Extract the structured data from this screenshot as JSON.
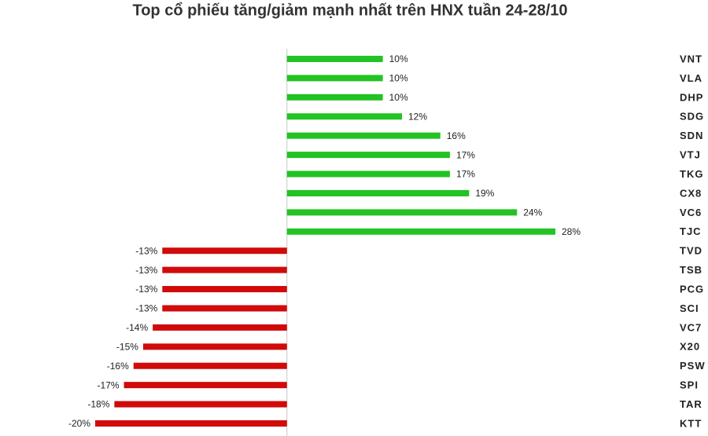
{
  "chart_data": {
    "type": "bar",
    "orientation": "horizontal",
    "title": "Top cổ phiếu tăng/giảm mạnh nhất trên HNX tuần 24-28/10",
    "categories": [
      "VNT",
      "VLA",
      "DHP",
      "SDG",
      "SDN",
      "VTJ",
      "TKG",
      "CX8",
      "VC6",
      "TJC",
      "TVD",
      "TSB",
      "PCG",
      "SCI",
      "VC7",
      "X20",
      "PSW",
      "SPI",
      "TAR",
      "KTT"
    ],
    "values": [
      10,
      10,
      10,
      12,
      16,
      17,
      17,
      19,
      24,
      28,
      -13,
      -13,
      -13,
      -13,
      -14,
      -15,
      -16,
      -17,
      -18,
      -20
    ],
    "value_labels": [
      "10%",
      "10%",
      "10%",
      "12%",
      "16%",
      "17%",
      "17%",
      "19%",
      "24%",
      "28%",
      "-13%",
      "-13%",
      "-13%",
      "-13%",
      "-14%",
      "-15%",
      "-16%",
      "-17%",
      "-18%",
      "-20%"
    ],
    "positive_color": "#22c322",
    "negative_color": "#d10a0a"
  }
}
